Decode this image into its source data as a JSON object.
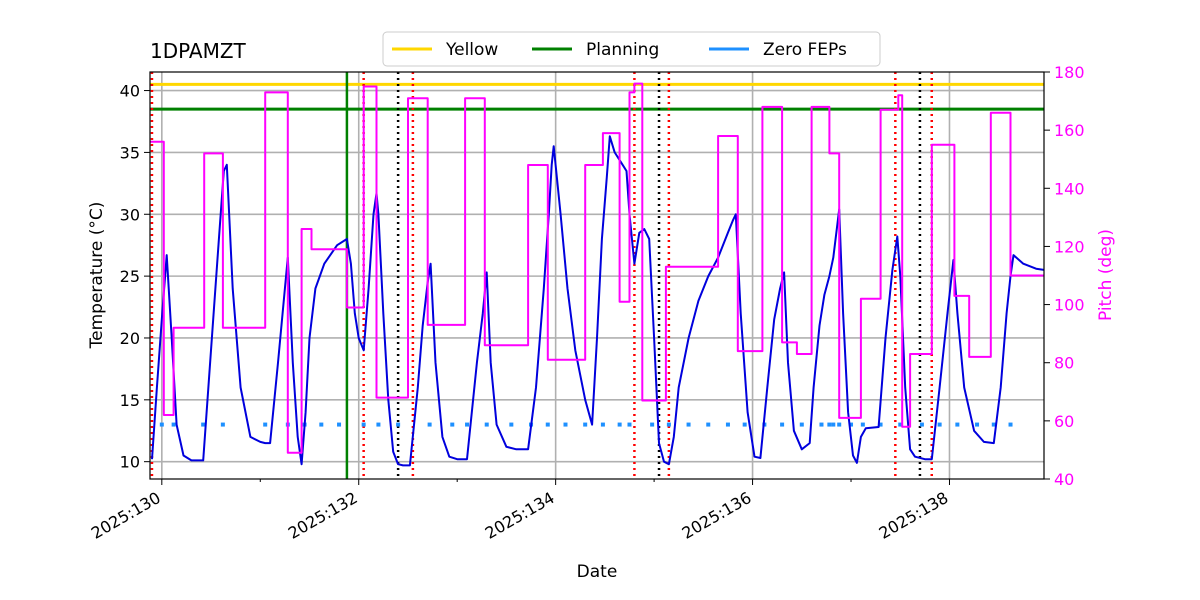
{
  "chart_data": {
    "type": "line",
    "title": "1DPAMZT",
    "xlabel": "Date",
    "ylabel": "Temperature ($^\\circ$C)",
    "ylabel_display": "Temperature (°C)",
    "y2label": "Pitch (deg)",
    "xlim": [
      129.88,
      138.96
    ],
    "ylim": [
      8.6,
      41.5
    ],
    "y2lim": [
      40,
      180
    ],
    "x_ticks": [
      130,
      132,
      134,
      136,
      138
    ],
    "x_tick_labels": [
      "2025:130",
      "2025:132",
      "2025:134",
      "2025:136",
      "2025:138"
    ],
    "y_ticks": [
      10,
      15,
      20,
      25,
      30,
      35,
      40
    ],
    "y2_ticks": [
      40,
      60,
      80,
      100,
      120,
      140,
      160,
      180
    ],
    "grid": true,
    "legend": {
      "placement": "top-center",
      "entries": [
        {
          "name": "Yellow",
          "color": "#ffd700"
        },
        {
          "name": "Planning",
          "color": "#008000"
        },
        {
          "name": "Zero FEPs",
          "color": "#1e90ff"
        }
      ]
    },
    "limits": [
      {
        "name": "Yellow",
        "value": 40.5,
        "color": "#ffd700"
      },
      {
        "name": "Planning",
        "value": 38.5,
        "color": "#008000"
      }
    ],
    "planning_start_x": 131.88,
    "red_vlines": [
      129.9,
      132.05,
      132.55,
      134.8,
      135.15,
      137.45,
      137.82
    ],
    "black_vlines": [
      132.4,
      135.05,
      137.7
    ],
    "zero_feps": {
      "y": 13,
      "x": [
        130.0,
        130.12,
        130.42,
        130.62,
        131.05,
        131.28,
        131.45,
        131.62,
        131.8,
        132.05,
        132.2,
        132.4,
        132.72,
        132.95,
        133.1,
        133.3,
        133.55,
        133.75,
        133.92,
        134.1,
        134.3,
        134.48,
        134.65,
        134.75,
        134.98,
        135.15,
        135.35,
        135.55,
        135.75,
        135.92,
        136.12,
        136.3,
        136.5,
        136.7,
        136.78,
        136.82,
        136.88,
        137.0,
        137.12,
        137.3,
        137.5,
        137.72,
        137.9,
        138.08,
        138.28,
        138.45,
        138.62
      ]
    },
    "series": [
      {
        "name": "1DPAMZT",
        "axis": "left",
        "color": "#0000dd",
        "points": [
          [
            129.9,
            10.2
          ],
          [
            129.95,
            16
          ],
          [
            130.0,
            21.5
          ],
          [
            130.05,
            26.7
          ],
          [
            130.1,
            20
          ],
          [
            130.15,
            13
          ],
          [
            130.22,
            10.5
          ],
          [
            130.3,
            10.1
          ],
          [
            130.42,
            10.1
          ],
          [
            130.5,
            19
          ],
          [
            130.58,
            28
          ],
          [
            130.63,
            33.5
          ],
          [
            130.66,
            34
          ],
          [
            130.72,
            24
          ],
          [
            130.8,
            16
          ],
          [
            130.9,
            12
          ],
          [
            131.0,
            11.6
          ],
          [
            131.05,
            11.5
          ],
          [
            131.1,
            11.5
          ],
          [
            131.18,
            18
          ],
          [
            131.25,
            24
          ],
          [
            131.28,
            26.5
          ],
          [
            131.33,
            18
          ],
          [
            131.38,
            12
          ],
          [
            131.42,
            9.8
          ],
          [
            131.46,
            14
          ],
          [
            131.5,
            20
          ],
          [
            131.56,
            24
          ],
          [
            131.65,
            26
          ],
          [
            131.78,
            27.5
          ],
          [
            131.88,
            28
          ],
          [
            131.92,
            26
          ],
          [
            131.96,
            22
          ],
          [
            132.0,
            20
          ],
          [
            132.05,
            19
          ],
          [
            132.1,
            24
          ],
          [
            132.15,
            30
          ],
          [
            132.18,
            31.7
          ],
          [
            132.2,
            30
          ],
          [
            132.25,
            22
          ],
          [
            132.3,
            15
          ],
          [
            132.35,
            10.8
          ],
          [
            132.4,
            9.8
          ],
          [
            132.45,
            9.7
          ],
          [
            132.52,
            9.7
          ],
          [
            132.6,
            16
          ],
          [
            132.65,
            21
          ],
          [
            132.7,
            24.5
          ],
          [
            132.73,
            26
          ],
          [
            132.78,
            18
          ],
          [
            132.85,
            12
          ],
          [
            132.92,
            10.4
          ],
          [
            133.0,
            10.2
          ],
          [
            133.1,
            10.2
          ],
          [
            133.2,
            18
          ],
          [
            133.26,
            22
          ],
          [
            133.3,
            25.3
          ],
          [
            133.34,
            18
          ],
          [
            133.4,
            13
          ],
          [
            133.5,
            11.2
          ],
          [
            133.6,
            11
          ],
          [
            133.72,
            11
          ],
          [
            133.8,
            16
          ],
          [
            133.88,
            24
          ],
          [
            133.93,
            30
          ],
          [
            133.96,
            34
          ],
          [
            133.98,
            35.5
          ],
          [
            134.05,
            30
          ],
          [
            134.12,
            24
          ],
          [
            134.2,
            19
          ],
          [
            134.3,
            15
          ],
          [
            134.37,
            13
          ],
          [
            134.42,
            20
          ],
          [
            134.47,
            28
          ],
          [
            134.52,
            33
          ],
          [
            134.55,
            36.3
          ],
          [
            134.6,
            35
          ],
          [
            134.68,
            34
          ],
          [
            134.72,
            33.5
          ],
          [
            134.75,
            30
          ],
          [
            134.8,
            26
          ],
          [
            134.85,
            28.5
          ],
          [
            134.9,
            28.8
          ],
          [
            134.95,
            28
          ],
          [
            135.0,
            20
          ],
          [
            135.05,
            11.5
          ],
          [
            135.1,
            10
          ],
          [
            135.15,
            9.8
          ],
          [
            135.2,
            12
          ],
          [
            135.25,
            16
          ],
          [
            135.35,
            20
          ],
          [
            135.45,
            23
          ],
          [
            135.55,
            25
          ],
          [
            135.65,
            26.5
          ],
          [
            135.75,
            28.5
          ],
          [
            135.8,
            29.5
          ],
          [
            135.83,
            30
          ],
          [
            135.88,
            22
          ],
          [
            135.95,
            14
          ],
          [
            136.02,
            10.4
          ],
          [
            136.08,
            10.3
          ],
          [
            136.15,
            16
          ],
          [
            136.22,
            21.5
          ],
          [
            136.28,
            24
          ],
          [
            136.32,
            25.3
          ],
          [
            136.36,
            18
          ],
          [
            136.42,
            12.5
          ],
          [
            136.5,
            11
          ],
          [
            136.58,
            11.5
          ],
          [
            136.62,
            16
          ],
          [
            136.68,
            21
          ],
          [
            136.73,
            23.5
          ],
          [
            136.78,
            25
          ],
          [
            136.82,
            26.5
          ],
          [
            136.88,
            30.4
          ],
          [
            136.92,
            22
          ],
          [
            136.97,
            14
          ],
          [
            137.02,
            10.5
          ],
          [
            137.06,
            9.9
          ],
          [
            137.1,
            12
          ],
          [
            137.15,
            12.7
          ],
          [
            137.28,
            12.8
          ],
          [
            137.35,
            20
          ],
          [
            137.42,
            25.5
          ],
          [
            137.47,
            28.2
          ],
          [
            137.5,
            25
          ],
          [
            137.55,
            16
          ],
          [
            137.6,
            11
          ],
          [
            137.65,
            10.4
          ],
          [
            137.75,
            10.2
          ],
          [
            137.82,
            10.2
          ],
          [
            137.9,
            16
          ],
          [
            137.98,
            22
          ],
          [
            138.04,
            26.3
          ],
          [
            138.08,
            22
          ],
          [
            138.15,
            16
          ],
          [
            138.25,
            12.5
          ],
          [
            138.35,
            11.6
          ],
          [
            138.45,
            11.5
          ],
          [
            138.52,
            16
          ],
          [
            138.58,
            22
          ],
          [
            138.62,
            25
          ],
          [
            138.65,
            26.7
          ],
          [
            138.75,
            26
          ],
          [
            138.88,
            25.6
          ],
          [
            138.96,
            25.5
          ]
        ]
      },
      {
        "name": "Pitch",
        "axis": "right",
        "color": "#ff00ff",
        "points": [
          [
            129.88,
            156
          ],
          [
            130.02,
            156
          ],
          [
            130.02,
            62
          ],
          [
            130.12,
            62
          ],
          [
            130.12,
            92
          ],
          [
            130.43,
            92
          ],
          [
            130.43,
            152
          ],
          [
            130.62,
            152
          ],
          [
            130.62,
            92
          ],
          [
            131.05,
            92
          ],
          [
            131.05,
            173
          ],
          [
            131.28,
            173
          ],
          [
            131.28,
            49
          ],
          [
            131.42,
            49
          ],
          [
            131.42,
            126
          ],
          [
            131.52,
            126
          ],
          [
            131.52,
            119
          ],
          [
            131.88,
            119
          ],
          [
            131.88,
            99
          ],
          [
            132.05,
            99
          ],
          [
            132.05,
            175
          ],
          [
            132.18,
            175
          ],
          [
            132.18,
            68
          ],
          [
            132.5,
            68
          ],
          [
            132.5,
            171
          ],
          [
            132.7,
            171
          ],
          [
            132.7,
            93
          ],
          [
            133.08,
            93
          ],
          [
            133.08,
            171
          ],
          [
            133.28,
            171
          ],
          [
            133.28,
            86
          ],
          [
            133.72,
            86
          ],
          [
            133.72,
            148
          ],
          [
            133.92,
            148
          ],
          [
            133.92,
            81
          ],
          [
            134.3,
            81
          ],
          [
            134.3,
            148
          ],
          [
            134.48,
            148
          ],
          [
            134.48,
            159
          ],
          [
            134.65,
            159
          ],
          [
            134.65,
            101
          ],
          [
            134.75,
            101
          ],
          [
            134.75,
            173
          ],
          [
            134.8,
            173
          ],
          [
            134.8,
            176
          ],
          [
            134.88,
            176
          ],
          [
            134.88,
            67
          ],
          [
            135.12,
            67
          ],
          [
            135.12,
            113
          ],
          [
            135.65,
            113
          ],
          [
            135.65,
            158
          ],
          [
            135.85,
            158
          ],
          [
            135.85,
            84
          ],
          [
            136.1,
            84
          ],
          [
            136.1,
            168
          ],
          [
            136.3,
            168
          ],
          [
            136.3,
            87
          ],
          [
            136.45,
            87
          ],
          [
            136.45,
            83
          ],
          [
            136.6,
            83
          ],
          [
            136.6,
            168
          ],
          [
            136.78,
            168
          ],
          [
            136.78,
            152
          ],
          [
            136.88,
            152
          ],
          [
            136.88,
            61
          ],
          [
            137.1,
            61
          ],
          [
            137.1,
            102
          ],
          [
            137.3,
            102
          ],
          [
            137.3,
            167
          ],
          [
            137.48,
            167
          ],
          [
            137.48,
            172
          ],
          [
            137.52,
            172
          ],
          [
            137.52,
            58
          ],
          [
            137.6,
            58
          ],
          [
            137.6,
            83
          ],
          [
            137.82,
            83
          ],
          [
            137.82,
            155
          ],
          [
            138.05,
            155
          ],
          [
            138.05,
            103
          ],
          [
            138.2,
            103
          ],
          [
            138.2,
            82
          ],
          [
            138.42,
            82
          ],
          [
            138.42,
            166
          ],
          [
            138.62,
            166
          ],
          [
            138.62,
            110
          ],
          [
            138.96,
            110
          ]
        ]
      }
    ]
  }
}
